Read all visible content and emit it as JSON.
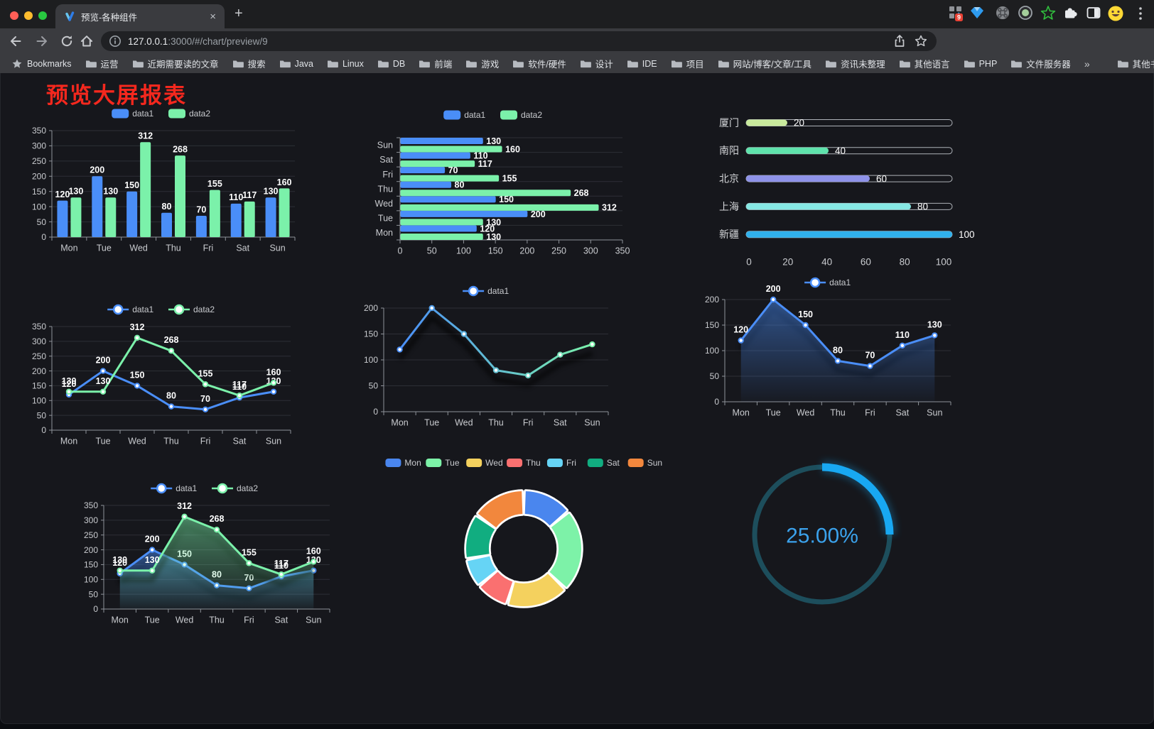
{
  "browser": {
    "tab": {
      "title": "预览-各种组件",
      "close_glyph": "×",
      "new_tab_glyph": "+"
    },
    "url": {
      "host": "127.0.0.1",
      "rest": ":3000/#/chart/preview/9"
    },
    "bookmarks_bar": {
      "star_label": "Bookmarks",
      "folders": [
        "运营",
        "近期需要读的文章",
        "搜索",
        "Java",
        "Linux",
        "DB",
        "前端",
        "游戏",
        "软件/硬件",
        "设计",
        "IDE",
        "项目",
        "网站/博客/文章/工具",
        "资讯未整理",
        "其他语言",
        "PHP",
        "文件服务器"
      ],
      "overflow_glyph": "»",
      "other_bookmarks": "其他书签"
    },
    "extension_badge": "9"
  },
  "page": {
    "title": "预览大屏报表",
    "title_color": "#F5281E",
    "background": "#16171C"
  },
  "chart_data": [
    {
      "type": "bar",
      "categories": [
        "Mon",
        "Tue",
        "Wed",
        "Thu",
        "Fri",
        "Sat",
        "Sun"
      ],
      "series": [
        {
          "name": "data1",
          "color": "#4A8EF8",
          "values": [
            120,
            200,
            150,
            80,
            70,
            110,
            130
          ]
        },
        {
          "name": "data2",
          "color": "#7BF1AA",
          "values": [
            130,
            130,
            312,
            268,
            155,
            117,
            160
          ]
        }
      ],
      "ylim": [
        0,
        350
      ],
      "yticks": [
        0,
        50,
        100,
        150,
        200,
        250,
        300,
        350
      ],
      "legend_position": "top",
      "grid": true,
      "value_labels": true
    },
    {
      "type": "bar-horizontal",
      "categories": [
        "Mon",
        "Tue",
        "Wed",
        "Thu",
        "Fri",
        "Sat",
        "Sun"
      ],
      "series": [
        {
          "name": "data1",
          "color": "#4A8EF8",
          "values": [
            120,
            200,
            150,
            80,
            70,
            110,
            130
          ]
        },
        {
          "name": "data2",
          "color": "#7BF1AA",
          "values": [
            130,
            130,
            312,
            268,
            155,
            117,
            160
          ]
        }
      ],
      "xlim": [
        0,
        350
      ],
      "xticks": [
        0,
        50,
        100,
        150,
        200,
        250,
        300,
        350
      ],
      "legend_position": "top",
      "grid": true,
      "value_labels": true
    },
    {
      "type": "progress-bar",
      "categories": [
        "厦门",
        "南阳",
        "北京",
        "上海",
        "新疆"
      ],
      "values": [
        20,
        40,
        60,
        80,
        100
      ],
      "colors": [
        "#C9EA9C",
        "#5FE3AC",
        "#8E92E8",
        "#86E8E4",
        "#30B1EC"
      ],
      "xlim": [
        0,
        100
      ],
      "xticks": [
        0,
        20,
        40,
        60,
        80,
        100
      ],
      "value_labels": true
    },
    {
      "type": "line",
      "categories": [
        "Mon",
        "Tue",
        "Wed",
        "Thu",
        "Fri",
        "Sat",
        "Sun"
      ],
      "series": [
        {
          "name": "data1",
          "color": "#4A8EF8",
          "values": [
            120,
            200,
            150,
            80,
            70,
            110,
            130
          ]
        },
        {
          "name": "data2",
          "color": "#7BF1AA",
          "values": [
            130,
            130,
            312,
            268,
            155,
            117,
            160
          ]
        }
      ],
      "ylim": [
        0,
        350
      ],
      "yticks": [
        0,
        50,
        100,
        150,
        200,
        250,
        300,
        350
      ],
      "legend_position": "top",
      "grid": true,
      "markers": true,
      "value_labels": true
    },
    {
      "type": "line",
      "categories": [
        "Mon",
        "Tue",
        "Wed",
        "Thu",
        "Fri",
        "Sat",
        "Sun"
      ],
      "series": [
        {
          "name": "data1",
          "color": "#4A8EF8",
          "gradient": [
            "#4A8EF8",
            "#7BF1AA"
          ],
          "values": [
            120,
            200,
            150,
            80,
            70,
            110,
            130
          ]
        }
      ],
      "ylim": [
        0,
        200
      ],
      "yticks": [
        0,
        50,
        100,
        150,
        200
      ],
      "legend_position": "top",
      "grid": true,
      "markers": true,
      "value_labels": false,
      "shadow": true
    },
    {
      "type": "line",
      "categories": [
        "Mon",
        "Tue",
        "Wed",
        "Thu",
        "Fri",
        "Sat",
        "Sun"
      ],
      "series": [
        {
          "name": "data1",
          "color": "#4A8EF8",
          "values": [
            120,
            200,
            150,
            80,
            70,
            110,
            130
          ],
          "area": true
        }
      ],
      "ylim": [
        0,
        200
      ],
      "yticks": [
        0,
        50,
        100,
        150,
        200
      ],
      "legend_position": "top",
      "grid": true,
      "markers": true,
      "value_labels": true,
      "shadow": true
    },
    {
      "type": "line",
      "categories": [
        "Mon",
        "Tue",
        "Wed",
        "Thu",
        "Fri",
        "Sat",
        "Sun"
      ],
      "series": [
        {
          "name": "data1",
          "color": "#4A8EF8",
          "values": [
            120,
            200,
            150,
            80,
            70,
            110,
            130
          ],
          "area": true
        },
        {
          "name": "data2",
          "color": "#7BF1AA",
          "values": [
            130,
            130,
            312,
            268,
            155,
            117,
            160
          ],
          "area": true
        }
      ],
      "ylim": [
        0,
        350
      ],
      "yticks": [
        0,
        50,
        100,
        150,
        200,
        250,
        300,
        350
      ],
      "legend_position": "top",
      "grid": true,
      "markers": true,
      "value_labels": true,
      "shadow": true
    },
    {
      "type": "pie",
      "donut": true,
      "categories": [
        "Mon",
        "Tue",
        "Wed",
        "Thu",
        "Fri",
        "Sat",
        "Sun"
      ],
      "values": [
        120,
        200,
        150,
        80,
        70,
        110,
        130
      ],
      "colors": [
        "#4A86EE",
        "#7DF2A8",
        "#F4D15E",
        "#FA7070",
        "#66D4F5",
        "#11AD80",
        "#F2873D"
      ],
      "legend_position": "top"
    },
    {
      "type": "gauge",
      "value": 25,
      "max": 100,
      "label": "25.00%",
      "track_color": "#1D4E5C",
      "progress_color": "#18A8F2",
      "text_color": "#3BA2EC"
    }
  ]
}
